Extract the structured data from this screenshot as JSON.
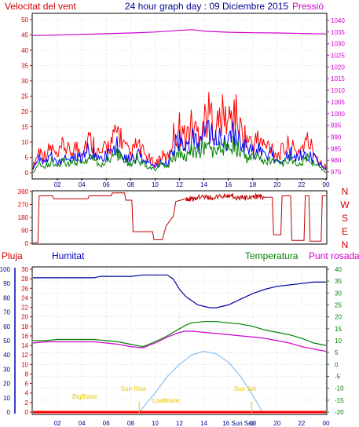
{
  "top": {
    "label_left": "Velocitat del vent",
    "title": "24 hour graph day : 09 Diciembre 2015",
    "label_right": "Pressió"
  },
  "dir": {
    "letters": [
      "N",
      "W",
      "S",
      "E",
      "N"
    ]
  },
  "bottom": {
    "label_rain": "Pluja",
    "label_humidity": "Humitat",
    "label_temperature": "Temperatura",
    "label_dew": "Punt rosada"
  },
  "colors": {
    "wind_gust": "#ff0000",
    "wind_avg": "#0000ff",
    "wind_avg2": "#008000",
    "pressure": "#d000d0",
    "direction": "#c00000",
    "humidity": "#0000a0",
    "temperature": "#008000",
    "dew_point": "#d000d0",
    "rain": "#ff0000",
    "solar": "#87bff0",
    "astro": "#e6c800"
  },
  "chart_data": [
    {
      "type": "line",
      "name": "wind-pressure",
      "x_ticks": [
        "02",
        "04",
        "06",
        "08",
        "10",
        "12",
        "14",
        "16",
        "18",
        "20",
        "22",
        "00"
      ],
      "x_range_hours": [
        0,
        24
      ],
      "y_left": {
        "ticks": [
          0,
          5,
          10,
          15,
          20,
          25,
          30,
          35,
          40,
          45,
          50
        ],
        "range": [
          0,
          50
        ]
      },
      "y_right": {
        "ticks": [
          975,
          980,
          985,
          990,
          995,
          1000,
          1005,
          1010,
          1015,
          1020,
          1025,
          1030,
          1035,
          1040
        ],
        "range": [
          973,
          1042
        ]
      },
      "grid": true,
      "series": [
        {
          "name": "gust",
          "color": "#ff0000",
          "hours": [
            0,
            0.5,
            1,
            1.5,
            2,
            2.5,
            3,
            3.5,
            4,
            4.5,
            5,
            5.5,
            6,
            6.5,
            7,
            7.5,
            8,
            8.5,
            9,
            9.5,
            10,
            10.5,
            11,
            11.5,
            12,
            12.5,
            13,
            13.5,
            14,
            14.5,
            15,
            15.5,
            16,
            16.5,
            17,
            17.5,
            18,
            18.5,
            19,
            19.5,
            20,
            20.5,
            21,
            21.5,
            22,
            22.5,
            23,
            23.5,
            24
          ],
          "values": [
            2,
            8,
            6,
            9,
            5,
            10,
            7,
            9,
            8,
            12,
            10,
            6,
            9,
            11,
            15,
            9,
            6,
            10,
            7,
            5,
            3,
            6,
            5,
            13,
            16,
            12,
            17,
            14,
            19,
            21,
            16,
            20,
            18,
            22,
            15,
            12,
            10,
            12,
            9,
            10,
            6,
            8,
            10,
            7,
            9,
            11,
            8,
            4,
            2
          ]
        },
        {
          "name": "average",
          "color": "#0000ff",
          "hours": [
            0,
            0.5,
            1,
            1.5,
            2,
            2.5,
            3,
            3.5,
            4,
            4.5,
            5,
            5.5,
            6,
            6.5,
            7,
            7.5,
            8,
            8.5,
            9,
            9.5,
            10,
            10.5,
            11,
            11.5,
            12,
            12.5,
            13,
            13.5,
            14,
            14.5,
            15,
            15.5,
            16,
            16.5,
            17,
            17.5,
            18,
            18.5,
            19,
            19.5,
            20,
            20.5,
            21,
            21.5,
            22,
            22.5,
            23,
            23.5,
            24
          ],
          "values": [
            1,
            5,
            3,
            6,
            3,
            6,
            4,
            6,
            5,
            8,
            7,
            4,
            6,
            7,
            10,
            6,
            4,
            7,
            5,
            3,
            2,
            4,
            3,
            9,
            11,
            8,
            12,
            10,
            13,
            14,
            11,
            13,
            12,
            14,
            10,
            8,
            7,
            8,
            6,
            7,
            4,
            5,
            7,
            5,
            6,
            7,
            5,
            3,
            1
          ]
        },
        {
          "name": "average-low",
          "color": "#008000",
          "hours": [
            0,
            0.5,
            1,
            1.5,
            2,
            2.5,
            3,
            3.5,
            4,
            4.5,
            5,
            5.5,
            6,
            6.5,
            7,
            7.5,
            8,
            8.5,
            9,
            9.5,
            10,
            10.5,
            11,
            11.5,
            12,
            12.5,
            13,
            13.5,
            14,
            14.5,
            15,
            15.5,
            16,
            16.5,
            17,
            17.5,
            18,
            18.5,
            19,
            19.5,
            20,
            20.5,
            21,
            21.5,
            22,
            22.5,
            23,
            23.5,
            24
          ],
          "values": [
            0,
            3,
            2,
            4,
            2,
            4,
            3,
            4,
            3,
            5,
            5,
            2,
            4,
            5,
            7,
            4,
            3,
            5,
            3,
            2,
            1,
            3,
            2,
            6,
            8,
            5,
            8,
            7,
            9,
            9,
            7,
            9,
            8,
            10,
            7,
            5,
            5,
            5,
            4,
            5,
            3,
            3,
            5,
            3,
            4,
            5,
            3,
            2,
            0
          ]
        },
        {
          "name": "pressure",
          "color": "#d000d0",
          "axis": "right",
          "hours": [
            0,
            2,
            4,
            6,
            8,
            10,
            12,
            13,
            14,
            16,
            18,
            20,
            22,
            24
          ],
          "values": [
            1033.5,
            1033.7,
            1034.0,
            1034.3,
            1034.6,
            1035.0,
            1035.7,
            1036.0,
            1035.4,
            1034.9,
            1034.7,
            1034.6,
            1034.4,
            1034.2
          ]
        }
      ]
    },
    {
      "type": "line",
      "name": "wind-direction",
      "y_ticks": [
        0,
        90,
        180,
        270,
        360
      ],
      "y_range": [
        0,
        360
      ],
      "series": [
        {
          "name": "direction",
          "color": "#c00000",
          "hours": [
            0,
            0.4,
            0.5,
            1.6,
            1.7,
            4.5,
            4.6,
            6.4,
            6.5,
            7.5,
            7.6,
            8.1,
            8.2,
            9.8,
            9.9,
            10.6,
            10.9,
            11.5,
            11.7,
            12.5,
            13.5,
            15,
            16.5,
            18,
            19,
            19.6,
            19.7,
            20.3,
            20.4,
            21.1,
            21.2,
            22.2,
            22.3,
            22.6,
            22.7,
            23.6,
            23.7,
            24
          ],
          "values": [
            5,
            5,
            330,
            330,
            310,
            310,
            330,
            330,
            350,
            350,
            300,
            300,
            80,
            80,
            25,
            25,
            120,
            190,
            290,
            310,
            320,
            330,
            315,
            325,
            320,
            320,
            60,
            60,
            330,
            330,
            20,
            20,
            330,
            330,
            15,
            15,
            330,
            330
          ]
        }
      ]
    },
    {
      "type": "line",
      "name": "humidity-temperature",
      "x_ticks": [
        "02",
        "04",
        "06",
        "08",
        "10",
        "12",
        "14",
        "16",
        "18",
        "20",
        "22",
        "00"
      ],
      "annotations": [
        "Sun Rise",
        "Sun Set",
        "BigBlade",
        "Lowblade",
        "16 Sun Set"
      ],
      "y_rain": {
        "ticks": [
          0,
          2,
          4,
          6,
          8,
          10,
          12,
          14,
          16,
          18,
          20,
          22,
          24,
          26,
          28,
          30
        ],
        "range": [
          0,
          30
        ]
      },
      "y_humidity": {
        "ticks": [
          0,
          10,
          20,
          30,
          40,
          50,
          60,
          70,
          80,
          90,
          100
        ],
        "range": [
          0,
          100
        ]
      },
      "y_temperature": {
        "ticks": [
          -20,
          -15,
          -10,
          -5,
          0,
          5,
          10,
          15,
          20,
          25,
          30,
          35,
          40
        ],
        "range": [
          -20,
          40
        ]
      },
      "series": [
        {
          "name": "humidity",
          "color": "#0000a0",
          "axis": "humidity",
          "hours": [
            0,
            1,
            2,
            3,
            4,
            5,
            5.5,
            6.5,
            7,
            8,
            9,
            10,
            11,
            11.5,
            12,
            12.5,
            13,
            13.5,
            14,
            14.5,
            15,
            16,
            17,
            18,
            19,
            20,
            21,
            22,
            23,
            24
          ],
          "values": [
            94,
            94,
            94,
            94,
            94,
            94,
            95,
            95,
            95,
            95,
            96,
            96,
            96,
            93,
            86,
            81,
            78,
            75,
            74,
            73,
            73,
            75,
            79,
            83,
            86,
            88,
            89,
            90,
            91,
            91
          ]
        },
        {
          "name": "temperature",
          "color": "#008000",
          "axis": "temperature",
          "hours": [
            0,
            1,
            2,
            3,
            4,
            5,
            6,
            7,
            8,
            9,
            10,
            11,
            12,
            12.5,
            13,
            14,
            15,
            16,
            17,
            18,
            19,
            20,
            21,
            22,
            23,
            24
          ],
          "values": [
            10,
            10,
            10.5,
            10.5,
            10.5,
            10.5,
            10,
            9.5,
            8.5,
            7.5,
            9.5,
            12,
            15,
            16.5,
            17.5,
            18,
            18,
            17.5,
            17,
            16,
            14.5,
            13.5,
            12.5,
            11,
            9,
            8
          ]
        },
        {
          "name": "dew-point",
          "color": "#d000d0",
          "axis": "temperature",
          "hours": [
            0,
            1,
            2,
            3,
            4,
            5,
            6,
            7,
            8,
            9,
            10,
            11,
            12,
            12.5,
            13,
            14,
            15,
            16,
            17,
            18,
            19,
            20,
            21,
            22,
            23,
            24
          ],
          "values": [
            9,
            9.5,
            9.5,
            9.5,
            9.5,
            9.5,
            9,
            8.5,
            7.5,
            7,
            9,
            11.5,
            13.5,
            14,
            14,
            13.5,
            13,
            12.5,
            12,
            11.5,
            11,
            10,
            9,
            7.5,
            6.5,
            5.5
          ]
        },
        {
          "name": "solar",
          "color": "#87bff0",
          "axis": "temperature",
          "hours": [
            8.7,
            10,
            11,
            12,
            13,
            14,
            15,
            16,
            17,
            18,
            18.8
          ],
          "values": [
            -20,
            -12,
            -5,
            0,
            4,
            5.5,
            4.5,
            1,
            -5,
            -13,
            -20
          ]
        },
        {
          "name": "rain",
          "color": "#ff0000",
          "axis": "rain",
          "hours": [
            0,
            24
          ],
          "values": [
            0,
            0
          ]
        }
      ]
    }
  ]
}
